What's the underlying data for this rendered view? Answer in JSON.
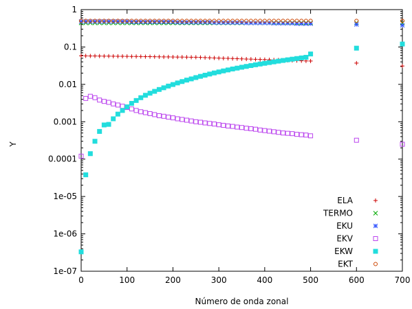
{
  "chart_data": {
    "type": "scatter",
    "title": "",
    "xlabel": "Número de onda zonal",
    "ylabel": "Y",
    "xlim": [
      0,
      700
    ],
    "ylim": [
      1e-07,
      1
    ],
    "yscale": "log",
    "grid": false,
    "legend_position": "bottom-right",
    "x_ticks": [
      "0",
      "100",
      "200",
      "300",
      "400",
      "500",
      "600",
      "700"
    ],
    "y_ticks": [
      "1e-07",
      "1e-06",
      "1e-05",
      "0.0001",
      "0.001",
      "0.01",
      "0.1",
      "1"
    ],
    "series": [
      {
        "name": "ELA",
        "color": "#cc0000",
        "marker": "plus",
        "x": [
          0,
          10,
          20,
          30,
          40,
          50,
          60,
          70,
          80,
          90,
          100,
          110,
          120,
          130,
          140,
          150,
          160,
          170,
          180,
          190,
          200,
          210,
          220,
          230,
          240,
          250,
          260,
          270,
          280,
          290,
          300,
          310,
          320,
          330,
          340,
          350,
          360,
          370,
          380,
          390,
          400,
          410,
          420,
          430,
          440,
          450,
          460,
          470,
          480,
          490,
          500,
          600,
          700
        ],
        "y": [
          0.058,
          0.0578,
          0.0576,
          0.0574,
          0.0572,
          0.057,
          0.0568,
          0.0566,
          0.0564,
          0.0562,
          0.056,
          0.0558,
          0.0556,
          0.0554,
          0.0552,
          0.055,
          0.0548,
          0.0546,
          0.0544,
          0.0542,
          0.054,
          0.0538,
          0.0536,
          0.0534,
          0.0532,
          0.053,
          0.0525,
          0.052,
          0.0515,
          0.051,
          0.0505,
          0.05,
          0.0495,
          0.049,
          0.0485,
          0.048,
          0.0476,
          0.0472,
          0.0468,
          0.0464,
          0.046,
          0.0456,
          0.0452,
          0.0448,
          0.0444,
          0.044,
          0.0436,
          0.0432,
          0.0428,
          0.0424,
          0.042,
          0.037,
          0.031
        ]
      },
      {
        "name": "TERMO",
        "color": "#00aa00",
        "marker": "cross",
        "x": [
          0,
          10,
          20,
          30,
          40,
          50,
          60,
          70,
          80,
          90,
          100,
          110,
          120,
          130,
          140,
          150,
          160,
          170,
          180,
          190,
          200,
          210,
          220,
          230,
          240,
          250,
          260,
          270,
          280,
          290,
          300,
          310,
          320,
          330,
          340,
          350,
          360,
          370,
          380,
          390,
          400,
          410,
          420,
          430,
          440,
          450,
          460,
          470,
          480,
          490,
          500,
          600,
          700
        ],
        "y": [
          0.44,
          0.44,
          0.44,
          0.44,
          0.44,
          0.44,
          0.44,
          0.44,
          0.44,
          0.44,
          0.44,
          0.44,
          0.44,
          0.44,
          0.44,
          0.44,
          0.44,
          0.44,
          0.44,
          0.44,
          0.44,
          0.44,
          0.44,
          0.44,
          0.44,
          0.44,
          0.44,
          0.44,
          0.44,
          0.44,
          0.44,
          0.44,
          0.44,
          0.44,
          0.44,
          0.44,
          0.44,
          0.44,
          0.44,
          0.44,
          0.44,
          0.44,
          0.44,
          0.44,
          0.44,
          0.44,
          0.44,
          0.44,
          0.44,
          0.44,
          0.44,
          0.44,
          0.44
        ]
      },
      {
        "name": "EKU",
        "color": "#3355ff",
        "marker": "asterisk",
        "x": [
          0,
          10,
          20,
          30,
          40,
          50,
          60,
          70,
          80,
          90,
          100,
          110,
          120,
          130,
          140,
          150,
          160,
          170,
          180,
          190,
          200,
          210,
          220,
          230,
          240,
          250,
          260,
          270,
          280,
          290,
          300,
          310,
          320,
          330,
          340,
          350,
          360,
          370,
          380,
          390,
          400,
          410,
          420,
          430,
          440,
          450,
          460,
          470,
          480,
          490,
          500,
          600,
          700
        ],
        "y": [
          0.48,
          0.48,
          0.48,
          0.48,
          0.48,
          0.48,
          0.48,
          0.48,
          0.48,
          0.48,
          0.48,
          0.47,
          0.47,
          0.47,
          0.47,
          0.47,
          0.47,
          0.47,
          0.47,
          0.47,
          0.47,
          0.46,
          0.46,
          0.46,
          0.46,
          0.46,
          0.46,
          0.46,
          0.46,
          0.45,
          0.45,
          0.45,
          0.45,
          0.45,
          0.45,
          0.45,
          0.44,
          0.44,
          0.44,
          0.44,
          0.44,
          0.44,
          0.43,
          0.43,
          0.43,
          0.43,
          0.43,
          0.42,
          0.42,
          0.42,
          0.42,
          0.4,
          0.38
        ]
      },
      {
        "name": "EKV",
        "color": "#bb44ee",
        "marker": "square-open",
        "x": [
          0,
          10,
          20,
          30,
          40,
          50,
          60,
          70,
          80,
          90,
          100,
          110,
          120,
          130,
          140,
          150,
          160,
          170,
          180,
          190,
          200,
          210,
          220,
          230,
          240,
          250,
          260,
          270,
          280,
          290,
          300,
          310,
          320,
          330,
          340,
          350,
          360,
          370,
          380,
          390,
          400,
          410,
          420,
          430,
          440,
          450,
          460,
          470,
          480,
          490,
          500,
          600,
          700
        ],
        "y": [
          0.00012,
          0.0042,
          0.0048,
          0.0044,
          0.0038,
          0.0035,
          0.0033,
          0.003,
          0.0028,
          0.0026,
          0.0024,
          0.0022,
          0.002,
          0.00185,
          0.00175,
          0.00165,
          0.00155,
          0.00145,
          0.0014,
          0.00133,
          0.00127,
          0.0012,
          0.00115,
          0.0011,
          0.00105,
          0.001,
          0.00097,
          0.00093,
          0.0009,
          0.00087,
          0.00083,
          0.0008,
          0.00077,
          0.00075,
          0.00072,
          0.0007,
          0.00067,
          0.00065,
          0.00063,
          0.0006,
          0.00058,
          0.00056,
          0.00054,
          0.00052,
          0.0005,
          0.00049,
          0.00048,
          0.00046,
          0.00045,
          0.00044,
          0.00042,
          0.00032,
          0.00025
        ]
      },
      {
        "name": "EKW",
        "color": "#22dddd",
        "marker": "square-filled",
        "x": [
          0,
          10,
          20,
          30,
          40,
          50,
          60,
          70,
          80,
          90,
          100,
          110,
          120,
          130,
          140,
          150,
          160,
          170,
          180,
          190,
          200,
          210,
          220,
          230,
          240,
          250,
          260,
          270,
          280,
          290,
          300,
          310,
          320,
          330,
          340,
          350,
          360,
          370,
          380,
          390,
          400,
          410,
          420,
          430,
          440,
          450,
          460,
          470,
          480,
          490,
          500,
          600,
          700
        ],
        "y": [
          3.3e-07,
          3.8e-05,
          0.00014,
          0.0003,
          0.00055,
          0.00082,
          0.00085,
          0.0012,
          0.0016,
          0.002,
          0.0025,
          0.0031,
          0.0037,
          0.0044,
          0.0051,
          0.0058,
          0.0065,
          0.0073,
          0.0081,
          0.009,
          0.0099,
          0.0109,
          0.0119,
          0.013,
          0.014,
          0.0152,
          0.0164,
          0.0176,
          0.0189,
          0.0202,
          0.0215,
          0.0229,
          0.0243,
          0.0258,
          0.0272,
          0.0287,
          0.0302,
          0.0318,
          0.0334,
          0.035,
          0.0366,
          0.0383,
          0.04,
          0.0418,
          0.0436,
          0.0454,
          0.0472,
          0.0491,
          0.051,
          0.053,
          0.065,
          0.093,
          0.12
        ]
      },
      {
        "name": "EKT",
        "color": "#cc4400",
        "marker": "circle-open",
        "x": [
          0,
          10,
          20,
          30,
          40,
          50,
          60,
          70,
          80,
          90,
          100,
          110,
          120,
          130,
          140,
          150,
          160,
          170,
          180,
          190,
          200,
          210,
          220,
          230,
          240,
          250,
          260,
          270,
          280,
          290,
          300,
          310,
          320,
          330,
          340,
          350,
          360,
          370,
          380,
          390,
          400,
          410,
          420,
          430,
          440,
          450,
          460,
          470,
          480,
          490,
          500,
          600,
          700
        ],
        "y": [
          0.5,
          0.5,
          0.5,
          0.5,
          0.5,
          0.5,
          0.5,
          0.5,
          0.5,
          0.5,
          0.5,
          0.5,
          0.5,
          0.5,
          0.5,
          0.5,
          0.5,
          0.5,
          0.5,
          0.5,
          0.5,
          0.5,
          0.5,
          0.5,
          0.5,
          0.5,
          0.5,
          0.5,
          0.5,
          0.5,
          0.5,
          0.5,
          0.5,
          0.5,
          0.5,
          0.5,
          0.5,
          0.5,
          0.5,
          0.5,
          0.5,
          0.5,
          0.5,
          0.5,
          0.5,
          0.5,
          0.5,
          0.5,
          0.5,
          0.5,
          0.5,
          0.5,
          0.5
        ]
      }
    ]
  }
}
